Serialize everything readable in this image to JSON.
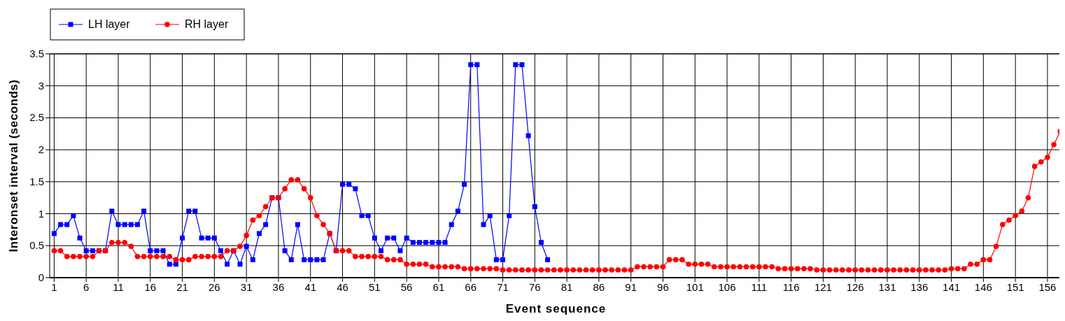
{
  "chart_data": {
    "type": "line",
    "xlabel": "Event sequence",
    "ylabel": "Interonset interval (seconds)",
    "x": [
      1,
      2,
      3,
      4,
      5,
      6,
      7,
      8,
      9,
      10,
      11,
      12,
      13,
      14,
      15,
      16,
      17,
      18,
      19,
      20,
      21,
      22,
      23,
      24,
      25,
      26,
      27,
      28,
      29,
      30,
      31,
      32,
      33,
      34,
      35,
      36,
      37,
      38,
      39,
      40,
      41,
      42,
      43,
      44,
      45,
      46,
      47,
      48,
      49,
      50,
      51,
      52,
      53,
      54,
      55,
      56,
      57,
      58,
      59,
      60,
      61,
      62,
      63,
      64,
      65,
      66,
      67,
      68,
      69,
      70,
      71,
      72,
      73,
      74,
      75,
      76,
      77,
      78,
      79,
      80,
      81,
      82,
      83,
      84,
      85,
      86,
      87,
      88,
      89,
      90,
      91,
      92,
      93,
      94,
      95,
      96,
      97,
      98,
      99,
      100,
      101,
      102,
      103,
      104,
      105,
      106,
      107,
      108,
      109,
      110,
      111,
      112,
      113,
      114,
      115,
      116,
      117,
      118,
      119,
      120,
      121,
      122,
      123,
      124,
      125,
      126,
      127,
      128,
      129,
      130,
      131,
      132,
      133,
      134,
      135,
      136,
      137,
      138,
      139,
      140,
      141,
      142,
      143,
      144,
      145,
      146,
      147,
      148,
      149,
      150,
      151,
      152,
      153,
      154,
      155,
      156,
      157,
      158
    ],
    "series": [
      {
        "name": "LH layer",
        "color": "#0000ff",
        "marker": "square",
        "x": [
          1,
          2,
          3,
          4,
          5,
          6,
          7,
          8,
          9,
          10,
          11,
          12,
          13,
          14,
          15,
          16,
          17,
          18,
          19,
          20,
          21,
          22,
          23,
          24,
          25,
          26,
          27,
          28,
          29,
          30,
          31,
          32,
          33,
          34,
          35,
          36,
          37,
          38,
          39,
          40,
          41,
          42,
          43,
          44,
          45,
          46,
          47,
          48,
          49,
          50,
          51,
          52,
          53,
          54,
          55,
          56,
          57,
          58,
          59,
          60,
          61,
          62,
          63,
          64,
          65,
          66,
          67,
          68,
          69,
          70,
          71,
          72,
          73,
          74,
          75,
          76,
          77,
          78
        ],
        "values": [
          0.69,
          0.83,
          0.83,
          0.97,
          0.62,
          0.42,
          0.42,
          0.42,
          0.42,
          1.04,
          0.83,
          0.83,
          0.83,
          0.83,
          1.04,
          0.42,
          0.42,
          0.42,
          0.21,
          0.21,
          0.62,
          1.04,
          1.04,
          0.62,
          0.62,
          0.62,
          0.42,
          0.21,
          0.42,
          0.21,
          0.49,
          0.28,
          0.69,
          0.83,
          1.25,
          1.25,
          0.42,
          0.28,
          0.83,
          0.28,
          0.28,
          0.28,
          0.28,
          0.69,
          0.42,
          1.46,
          1.46,
          1.39,
          0.97,
          0.97,
          0.62,
          0.42,
          0.62,
          0.62,
          0.42,
          0.62,
          0.55,
          0.55,
          0.55,
          0.55,
          0.55,
          0.55,
          0.83,
          1.04,
          1.46,
          3.33,
          3.33,
          0.83,
          0.97,
          0.28,
          0.28,
          0.97,
          3.33,
          3.33,
          2.22,
          1.11,
          0.55,
          0.28
        ]
      },
      {
        "name": "RH layer",
        "color": "#ff0000",
        "marker": "circle",
        "values": [
          0.42,
          0.42,
          0.33,
          0.33,
          0.33,
          0.33,
          0.33,
          0.42,
          0.42,
          0.55,
          0.55,
          0.55,
          0.49,
          0.33,
          0.33,
          0.33,
          0.33,
          0.33,
          0.33,
          0.28,
          0.28,
          0.28,
          0.33,
          0.33,
          0.33,
          0.33,
          0.33,
          0.42,
          0.42,
          0.49,
          0.66,
          0.9,
          0.97,
          1.11,
          1.25,
          1.25,
          1.39,
          1.53,
          1.53,
          1.39,
          1.25,
          0.97,
          0.83,
          0.69,
          0.42,
          0.42,
          0.42,
          0.33,
          0.33,
          0.33,
          0.33,
          0.33,
          0.28,
          0.28,
          0.28,
          0.21,
          0.21,
          0.21,
          0.21,
          0.17,
          0.17,
          0.17,
          0.17,
          0.17,
          0.14,
          0.14,
          0.14,
          0.14,
          0.14,
          0.14,
          0.12,
          0.12,
          0.12,
          0.12,
          0.12,
          0.12,
          0.12,
          0.12,
          0.12,
          0.12,
          0.12,
          0.12,
          0.12,
          0.12,
          0.12,
          0.12,
          0.12,
          0.12,
          0.12,
          0.12,
          0.12,
          0.17,
          0.17,
          0.17,
          0.17,
          0.17,
          0.28,
          0.28,
          0.28,
          0.21,
          0.21,
          0.21,
          0.21,
          0.17,
          0.17,
          0.17,
          0.17,
          0.17,
          0.17,
          0.17,
          0.17,
          0.17,
          0.17,
          0.14,
          0.14,
          0.14,
          0.14,
          0.14,
          0.14,
          0.12,
          0.12,
          0.12,
          0.12,
          0.12,
          0.12,
          0.12,
          0.12,
          0.12,
          0.12,
          0.12,
          0.12,
          0.12,
          0.12,
          0.12,
          0.12,
          0.12,
          0.12,
          0.12,
          0.12,
          0.12,
          0.14,
          0.14,
          0.14,
          0.21,
          0.21,
          0.28,
          0.28,
          0.49,
          0.83,
          0.9,
          0.97,
          1.04,
          1.25,
          1.74,
          1.81,
          1.88,
          2.08,
          2.29
        ]
      }
    ],
    "xlim": [
      0.3,
      158.3
    ],
    "xticks": [
      1,
      6,
      11,
      16,
      21,
      26,
      31,
      36,
      41,
      46,
      51,
      56,
      61,
      66,
      71,
      76,
      81,
      86,
      91,
      96,
      101,
      106,
      111,
      116,
      121,
      126,
      131,
      136,
      141,
      146,
      151,
      156
    ],
    "ylim": [
      0,
      3.5
    ],
    "yticks": [
      0,
      0.5,
      1,
      1.5,
      2,
      2.5,
      3,
      3.5
    ],
    "grid": true,
    "legend": "top left"
  }
}
